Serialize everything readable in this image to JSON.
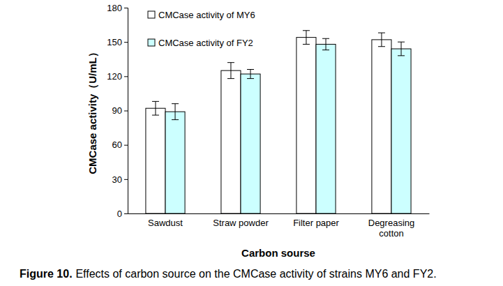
{
  "chart_data": {
    "type": "bar",
    "title_prefix": "Figure 10.",
    "title": "Effects of carbon source on the CMCase activity of strains MY6 and FY2.",
    "x_label": "Carbon sourse",
    "y_label": "CMCase activity（U/mL）",
    "categories": [
      "Sawdust",
      "Straw powder",
      "Filter paper",
      "Degreasing cotton"
    ],
    "series": [
      {
        "name": "CMCase activity of MY6",
        "color": "#ffffff",
        "values": [
          92,
          125,
          154,
          152
        ],
        "errors": [
          6,
          7,
          6,
          6
        ]
      },
      {
        "name": "CMCase activity of FY2",
        "color": "#ccffff",
        "values": [
          89,
          122,
          148,
          144
        ],
        "errors": [
          7,
          4,
          5,
          6
        ]
      }
    ],
    "ylim": [
      0,
      180
    ],
    "yticks": [
      0,
      30,
      60,
      90,
      120,
      150,
      180
    ],
    "legend": "upper left",
    "grid": false
  }
}
